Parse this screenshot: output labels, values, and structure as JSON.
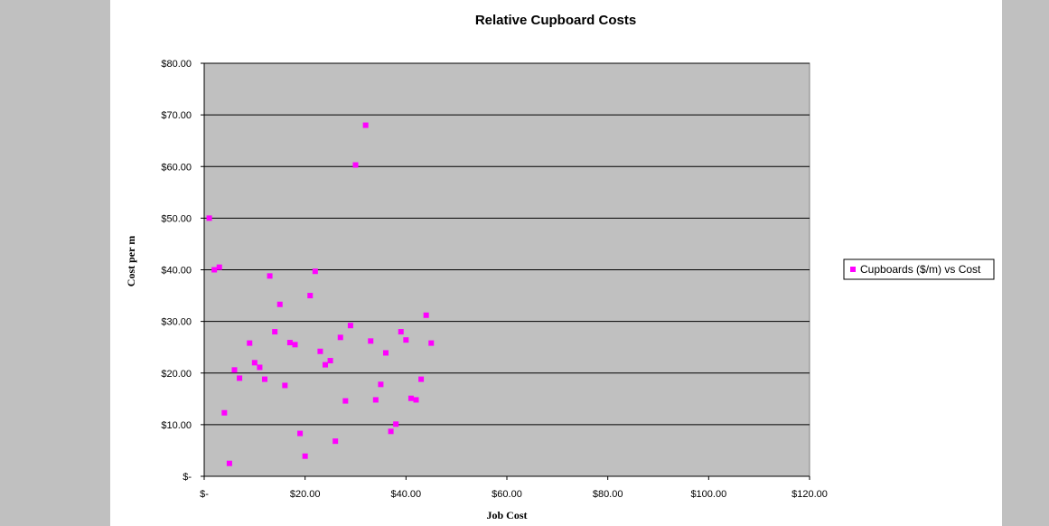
{
  "chart_data": {
    "type": "scatter",
    "title": "Relative Cupboard Costs",
    "xlabel": "Job Cost",
    "ylabel": "Cost per m",
    "xlim": [
      0,
      120
    ],
    "ylim": [
      0,
      80
    ],
    "x_ticks": [
      0,
      20,
      40,
      60,
      80,
      100,
      120
    ],
    "y_ticks": [
      0,
      10,
      20,
      30,
      40,
      50,
      60,
      70,
      80
    ],
    "x_tick_labels": [
      "$-",
      "$20.00",
      "$40.00",
      "$60.00",
      "$80.00",
      "$100.00",
      "$120.00"
    ],
    "y_tick_labels": [
      "$-",
      "$10.00",
      "$20.00",
      "$30.00",
      "$40.00",
      "$50.00",
      "$60.00",
      "$70.00",
      "$80.00"
    ],
    "grid": "horizontal",
    "legend_position": "right",
    "plot_bg_color": "#c0c0c0",
    "marker_color": "#ff00ff",
    "series": [
      {
        "name": "Cupboards ($/m) vs Cost",
        "points": [
          [
            1,
            50
          ],
          [
            2,
            40
          ],
          [
            3,
            40.5
          ],
          [
            4,
            12.3
          ],
          [
            5,
            2.5
          ],
          [
            6,
            20.6
          ],
          [
            7,
            19
          ],
          [
            9,
            25.8
          ],
          [
            10,
            22
          ],
          [
            11,
            21.1
          ],
          [
            12,
            18.8
          ],
          [
            13,
            38.8
          ],
          [
            14,
            28
          ],
          [
            15,
            33.3
          ],
          [
            16,
            17.6
          ],
          [
            17,
            25.9
          ],
          [
            18,
            25.5
          ],
          [
            19,
            8.3
          ],
          [
            20,
            3.9
          ],
          [
            21,
            35
          ],
          [
            22,
            39.7
          ],
          [
            23,
            24.2
          ],
          [
            24,
            21.6
          ],
          [
            25,
            22.4
          ],
          [
            26,
            6.8
          ],
          [
            27,
            26.9
          ],
          [
            28,
            14.6
          ],
          [
            29,
            29.2
          ],
          [
            30,
            60.3
          ],
          [
            32,
            68
          ],
          [
            33,
            26.2
          ],
          [
            34,
            14.8
          ],
          [
            35,
            17.8
          ],
          [
            36,
            23.9
          ],
          [
            37,
            8.7
          ],
          [
            38,
            10.1
          ],
          [
            39,
            28
          ],
          [
            40,
            26.4
          ],
          [
            41,
            15.1
          ],
          [
            42,
            14.8
          ],
          [
            43,
            18.8
          ],
          [
            44,
            31.2
          ],
          [
            45,
            25.8
          ]
        ]
      }
    ]
  }
}
